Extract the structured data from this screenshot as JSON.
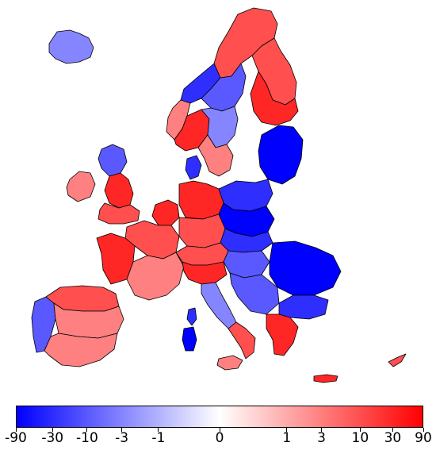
{
  "map": {
    "type": "choropleth",
    "region": "Europe",
    "legend_placement": "bottom",
    "colors": {
      "low": "#0000ff",
      "mid": "#ffffff",
      "high": "#ff0000",
      "border": "#000000"
    },
    "regions": [
      {
        "name": "iceland",
        "value": -3
      },
      {
        "name": "norway-north",
        "value": 10
      },
      {
        "name": "norway-mid",
        "value": -30
      },
      {
        "name": "norway-south-west",
        "value": 3
      },
      {
        "name": "norway-south",
        "value": 30
      },
      {
        "name": "sweden-north",
        "value": -10
      },
      {
        "name": "sweden-mid",
        "value": -3
      },
      {
        "name": "sweden-south",
        "value": 3
      },
      {
        "name": "finland-north",
        "value": 10
      },
      {
        "name": "finland-south",
        "value": 30
      },
      {
        "name": "baltics",
        "value": -90
      },
      {
        "name": "ireland",
        "value": 3
      },
      {
        "name": "scotland",
        "value": -10
      },
      {
        "name": "uk-north",
        "value": 30
      },
      {
        "name": "uk-south",
        "value": 10
      },
      {
        "name": "france-north",
        "value": 10
      },
      {
        "name": "france-west",
        "value": 30
      },
      {
        "name": "france-south",
        "value": 3
      },
      {
        "name": "benelux",
        "value": 30
      },
      {
        "name": "germany-north",
        "value": 30
      },
      {
        "name": "germany-south",
        "value": 10
      },
      {
        "name": "poland-north",
        "value": -30
      },
      {
        "name": "poland-south",
        "value": -90
      },
      {
        "name": "czechia-slovakia",
        "value": -30
      },
      {
        "name": "switzerland-austria",
        "value": 10
      },
      {
        "name": "hungary",
        "value": -10
      },
      {
        "name": "romania",
        "value": -90
      },
      {
        "name": "bulgaria",
        "value": -30
      },
      {
        "name": "balkans",
        "value": -10
      },
      {
        "name": "greece",
        "value": 30
      },
      {
        "name": "portugal",
        "value": -10
      },
      {
        "name": "spain-north",
        "value": 10
      },
      {
        "name": "spain-center",
        "value": 3
      },
      {
        "name": "spain-south",
        "value": 3
      },
      {
        "name": "italy-north",
        "value": 30
      },
      {
        "name": "italy-center",
        "value": -3
      },
      {
        "name": "italy-south",
        "value": 10
      },
      {
        "name": "sardinia",
        "value": -90
      },
      {
        "name": "corsica",
        "value": -30
      },
      {
        "name": "sicily",
        "value": 3
      },
      {
        "name": "crete",
        "value": 30
      },
      {
        "name": "cyprus",
        "value": 10
      },
      {
        "name": "denmark",
        "value": -30
      }
    ]
  },
  "colorbar": {
    "ticks": [
      {
        "label": "-90",
        "value": -90
      },
      {
        "label": "-30",
        "value": -30
      },
      {
        "label": "-10",
        "value": -10
      },
      {
        "label": "-3",
        "value": -3
      },
      {
        "label": "-1",
        "value": -1
      },
      {
        "label": "0",
        "value": 0
      },
      {
        "label": "1",
        "value": 1
      },
      {
        "label": "3",
        "value": 3
      },
      {
        "label": "10",
        "value": 10
      },
      {
        "label": "30",
        "value": 30
      },
      {
        "label": "90",
        "value": 90
      }
    ]
  }
}
